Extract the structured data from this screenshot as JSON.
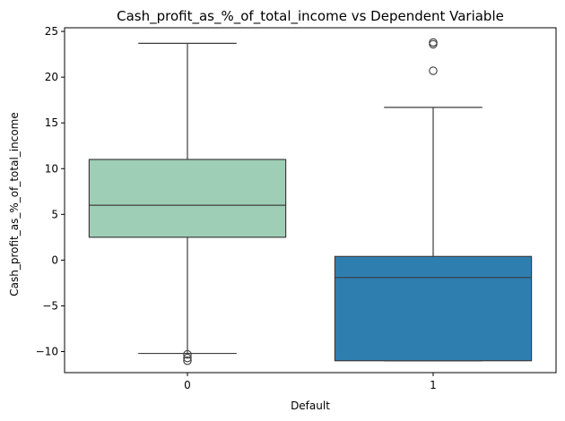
{
  "chart_data": {
    "type": "box",
    "title": "Cash_profit_as_%_of_total_income vs Dependent Variable",
    "xlabel": "Default",
    "ylabel": "Cash_profit_as_%_of_total_income",
    "categories": [
      "0",
      "1"
    ],
    "ylim": [
      -12.3,
      25.4
    ],
    "yticks": [
      -10,
      -5,
      0,
      5,
      10,
      15,
      20,
      25
    ],
    "ytick_labels": [
      "−10",
      "−5",
      "0",
      "5",
      "10",
      "15",
      "20",
      "25"
    ],
    "grid": false,
    "legend": "none",
    "boxes": [
      {
        "category": "0",
        "whisker_low": -10.2,
        "q1": 2.5,
        "median": 6.0,
        "q3": 11.0,
        "whisker_high": 23.7,
        "outliers": [
          -10.3,
          -10.7,
          -11.0
        ],
        "color": "#9ecfb6"
      },
      {
        "category": "1",
        "whisker_low": -11.0,
        "q1": -11.0,
        "median": -1.9,
        "q3": 0.4,
        "whisker_high": 16.7,
        "outliers": [
          20.7,
          23.6,
          23.8
        ],
        "color": "#2e7eb0"
      }
    ]
  }
}
